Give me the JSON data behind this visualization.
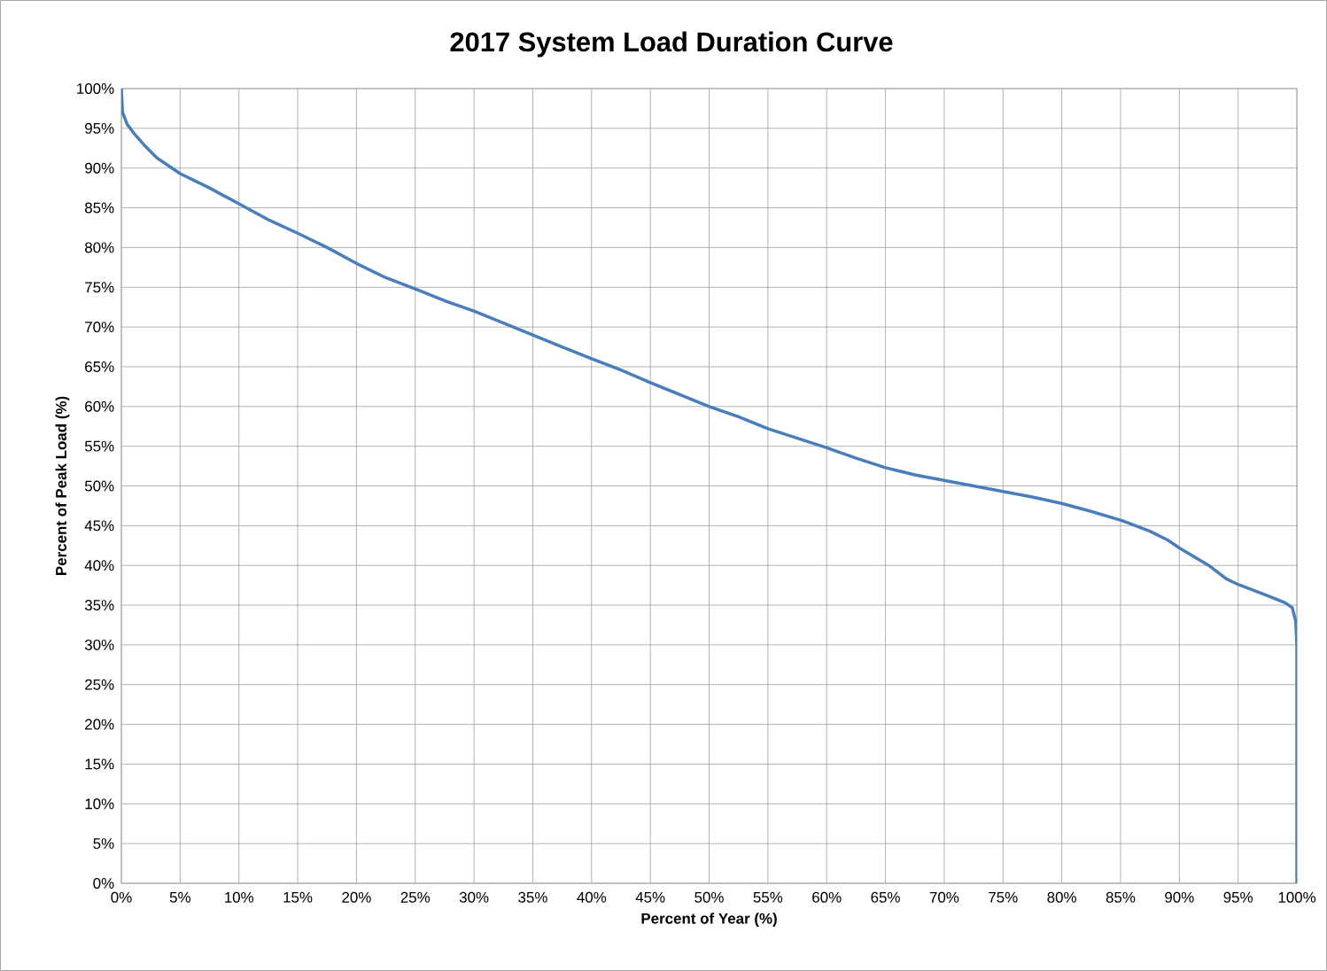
{
  "chart_data": {
    "type": "line",
    "title": "2017 System Load Duration Curve",
    "xlabel": "Percent of Year (%)",
    "ylabel": "Percent of Peak Load (%)",
    "color": "#4a7ebb",
    "grid": true,
    "x": [
      0,
      0.1,
      0.5,
      1,
      2,
      3,
      4,
      5,
      7.5,
      10,
      12.5,
      15,
      17.5,
      20,
      22.5,
      25,
      27.5,
      30,
      32.5,
      35,
      37.5,
      40,
      42.5,
      45,
      47.5,
      50,
      52.5,
      55,
      57.5,
      60,
      62.5,
      65,
      67.5,
      70,
      72.5,
      75,
      77.5,
      80,
      82.5,
      85,
      87.5,
      89,
      90,
      92.5,
      94,
      95,
      97.5,
      99,
      99.6,
      99.9,
      100,
      100
    ],
    "values": [
      100,
      97,
      95.5,
      94.5,
      92.8,
      91.3,
      90.3,
      89.3,
      87.5,
      85.5,
      83.5,
      81.8,
      80,
      78,
      76.2,
      74.8,
      73.3,
      72,
      70.5,
      69,
      67.5,
      66,
      64.6,
      63,
      61.5,
      60,
      58.7,
      57.2,
      56,
      54.8,
      53.5,
      52.3,
      51.4,
      50.7,
      50,
      49.3,
      48.6,
      47.8,
      46.8,
      45.7,
      44.3,
      43.2,
      42.2,
      40,
      38.3,
      37.6,
      36.2,
      35.3,
      34.7,
      33,
      30,
      0
    ],
    "xlim": [
      0,
      100
    ],
    "ylim": [
      0,
      100
    ],
    "xticks": [
      {
        "value": 0,
        "label": "0%"
      },
      {
        "value": 5,
        "label": "5%"
      },
      {
        "value": 10,
        "label": "10%"
      },
      {
        "value": 15,
        "label": "15%"
      },
      {
        "value": 20,
        "label": "20%"
      },
      {
        "value": 25,
        "label": "25%"
      },
      {
        "value": 30,
        "label": "30%"
      },
      {
        "value": 35,
        "label": "35%"
      },
      {
        "value": 40,
        "label": "40%"
      },
      {
        "value": 45,
        "label": "45%"
      },
      {
        "value": 50,
        "label": "50%"
      },
      {
        "value": 55,
        "label": "55%"
      },
      {
        "value": 60,
        "label": "60%"
      },
      {
        "value": 65,
        "label": "65%"
      },
      {
        "value": 70,
        "label": "70%"
      },
      {
        "value": 75,
        "label": "75%"
      },
      {
        "value": 80,
        "label": "80%"
      },
      {
        "value": 85,
        "label": "85%"
      },
      {
        "value": 90,
        "label": "90%"
      },
      {
        "value": 95,
        "label": "95%"
      },
      {
        "value": 100,
        "label": "100%"
      }
    ],
    "yticks": [
      {
        "value": 0,
        "label": "0%"
      },
      {
        "value": 5,
        "label": "5%"
      },
      {
        "value": 10,
        "label": "10%"
      },
      {
        "value": 15,
        "label": "15%"
      },
      {
        "value": 20,
        "label": "20%"
      },
      {
        "value": 25,
        "label": "25%"
      },
      {
        "value": 30,
        "label": "30%"
      },
      {
        "value": 35,
        "label": "35%"
      },
      {
        "value": 40,
        "label": "40%"
      },
      {
        "value": 45,
        "label": "45%"
      },
      {
        "value": 50,
        "label": "50%"
      },
      {
        "value": 55,
        "label": "55%"
      },
      {
        "value": 60,
        "label": "60%"
      },
      {
        "value": 65,
        "label": "65%"
      },
      {
        "value": 70,
        "label": "70%"
      },
      {
        "value": 75,
        "label": "75%"
      },
      {
        "value": 80,
        "label": "80%"
      },
      {
        "value": 85,
        "label": "85%"
      },
      {
        "value": 90,
        "label": "90%"
      },
      {
        "value": 95,
        "label": "95%"
      },
      {
        "value": 100,
        "label": "100%"
      }
    ]
  }
}
